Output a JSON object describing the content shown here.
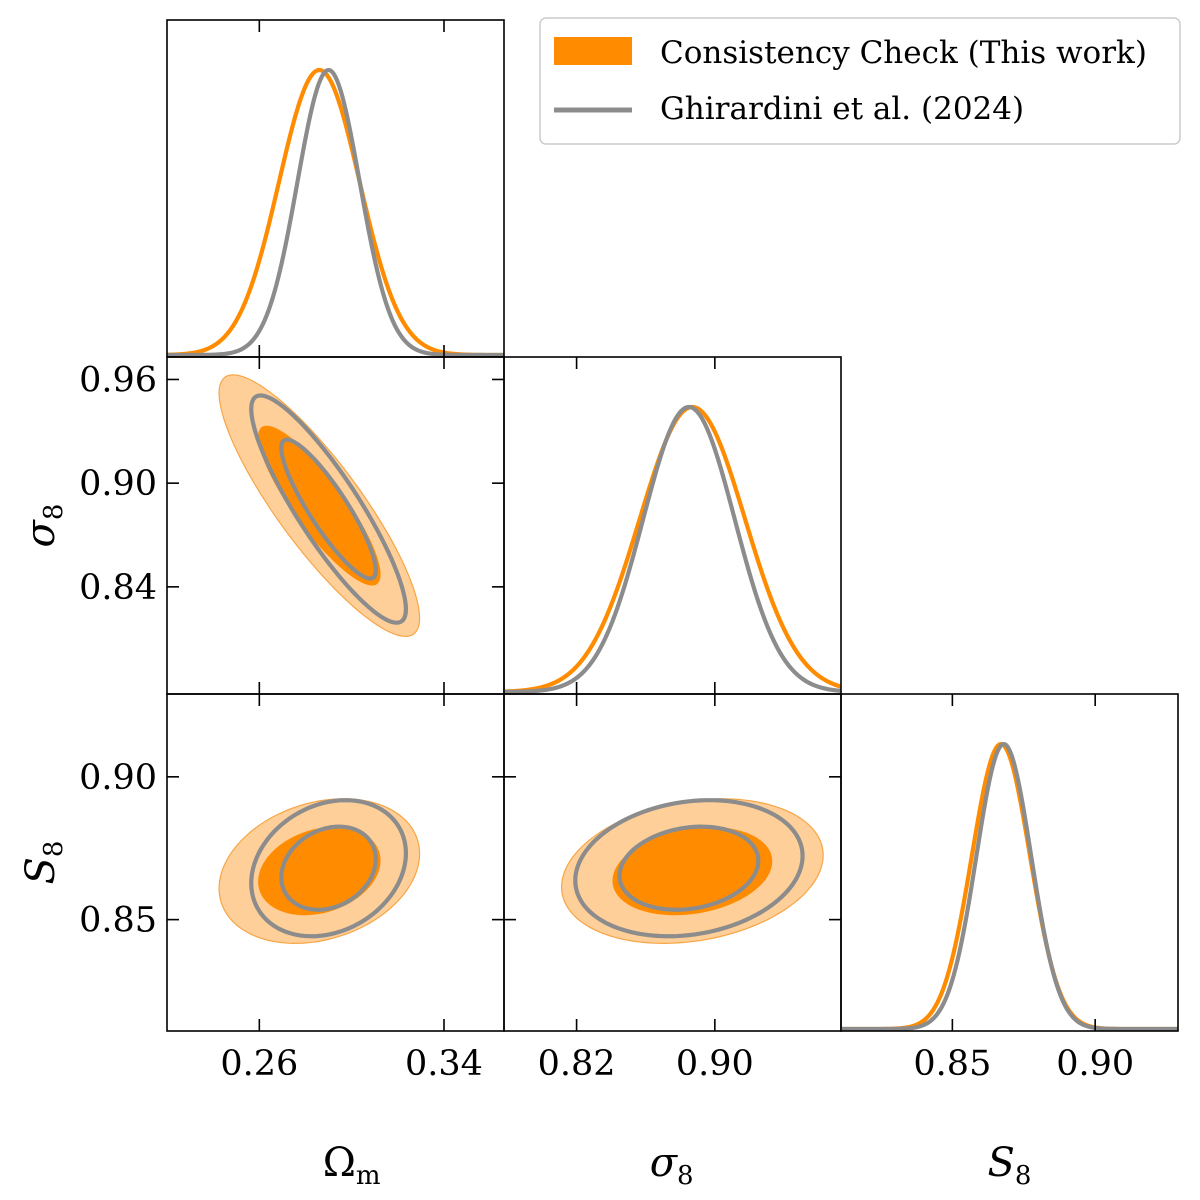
{
  "chart_data": {
    "type": "corner",
    "parameters": [
      {
        "key": "om",
        "label_main": "Ω",
        "label_sub": "m",
        "italic": false,
        "range": [
          0.22,
          0.366
        ],
        "ticks": [
          "0.26",
          "0.34"
        ],
        "tick_values": [
          0.26,
          0.34
        ]
      },
      {
        "key": "s8",
        "label_main": "σ",
        "label_sub": "8",
        "italic": true,
        "range": [
          0.778,
          0.973
        ],
        "ticks": [
          "0.84",
          "0.90",
          "0.96"
        ],
        "tick_values": [
          0.84,
          0.9,
          0.96
        ],
        "bottom_ticks": [
          "0.82",
          "0.90"
        ],
        "bottom_tick_values": [
          0.82,
          0.9
        ]
      },
      {
        "key": "S8",
        "label_main": "S",
        "label_sub": "8",
        "italic": true,
        "range": [
          0.811,
          0.929
        ],
        "ticks": [
          "0.85",
          "0.90"
        ],
        "tick_values": [
          0.85,
          0.9
        ]
      }
    ],
    "legend": {
      "placement": "top-right",
      "entries": [
        {
          "label": "Consistency Check (This work)",
          "style": "patch",
          "color": "#ff8c00"
        },
        {
          "label": "Ghirardini et al. (2024)",
          "style": "line",
          "color": "#8c8c8c"
        }
      ]
    },
    "series": [
      {
        "name": "Consistency Check (This work)",
        "color": "#ff8c00",
        "color_light": "#ffcf99",
        "marginals": {
          "om": {
            "mean": 0.286,
            "sigma": 0.0175
          },
          "s8": {
            "mean": 0.887,
            "sigma": 0.0305
          },
          "S8": {
            "mean": 0.867,
            "sigma": 0.0102
          }
        },
        "correlations": {
          "om_s8": -0.86,
          "om_S8": 0.24,
          "s8_S8": 0.22
        }
      },
      {
        "name": "Ghirardini et al. (2024)",
        "color": "#8c8c8c",
        "marginals": {
          "om": {
            "mean": 0.29,
            "sigma": 0.0135
          },
          "s8": {
            "mean": 0.885,
            "sigma": 0.0265
          },
          "S8": {
            "mean": 0.868,
            "sigma": 0.0096
          }
        },
        "correlations": {
          "om_s8": -0.88,
          "om_S8": 0.22,
          "s8_S8": 0.18
        }
      }
    ]
  }
}
